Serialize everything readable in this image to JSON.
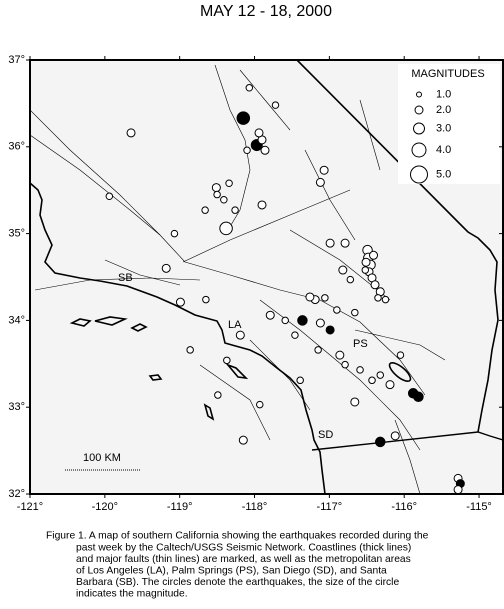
{
  "title": "MAY 12 - 18, 2000",
  "map": {
    "xlim": [
      -121,
      -114.68
    ],
    "ylim": [
      32,
      37
    ],
    "xticks": [
      {
        "value": -121,
        "label": "-121°"
      },
      {
        "value": -120,
        "label": "-120°"
      },
      {
        "value": -119,
        "label": "-119°"
      },
      {
        "value": -118,
        "label": "-118°"
      },
      {
        "value": -117,
        "label": "-117°"
      },
      {
        "value": -116,
        "label": "-116°"
      },
      {
        "value": -115,
        "label": "-115°"
      }
    ],
    "yticks": [
      {
        "value": 32,
        "label": "32°"
      },
      {
        "value": 33,
        "label": "33°"
      },
      {
        "value": 34,
        "label": "34°"
      },
      {
        "value": 35,
        "label": "35°"
      },
      {
        "value": 36,
        "label": "36°"
      },
      {
        "value": 37,
        "label": "37°"
      }
    ]
  },
  "legend": {
    "title": "MAGNITUDES",
    "entries": [
      {
        "value": 1,
        "label": "1.0"
      },
      {
        "value": 2,
        "label": "2.0"
      },
      {
        "value": 3,
        "label": "3.0"
      },
      {
        "value": 4,
        "label": "4.0"
      },
      {
        "value": 5,
        "label": "5.0"
      }
    ]
  },
  "places": [
    "SB",
    "LA",
    "PS",
    "SD"
  ],
  "scale_bar": "100 KM",
  "events": [
    {
      "lon": -118.15,
      "lat": 36.33,
      "mag": 3.5,
      "filled": true
    },
    {
      "lon": -117.97,
      "lat": 36.02,
      "mag": 3.0,
      "filled": true
    },
    {
      "lon": -117.9,
      "lat": 36.08,
      "mag": 2.0
    },
    {
      "lon": -117.94,
      "lat": 36.16,
      "mag": 2.0
    },
    {
      "lon": -117.72,
      "lat": 36.48,
      "mag": 1.5
    },
    {
      "lon": -118.07,
      "lat": 36.68,
      "mag": 1.5
    },
    {
      "lon": -119.65,
      "lat": 36.16,
      "mag": 2.0
    },
    {
      "lon": -117.86,
      "lat": 35.96,
      "mag": 2.0
    },
    {
      "lon": -118.1,
      "lat": 35.96,
      "mag": 1.5
    },
    {
      "lon": -118.51,
      "lat": 35.53,
      "mag": 2.0
    },
    {
      "lon": -118.5,
      "lat": 35.45,
      "mag": 1.5
    },
    {
      "lon": -118.34,
      "lat": 35.58,
      "mag": 1.5
    },
    {
      "lon": -118.41,
      "lat": 35.39,
      "mag": 1.5
    },
    {
      "lon": -117.9,
      "lat": 35.33,
      "mag": 2.0
    },
    {
      "lon": -118.26,
      "lat": 35.27,
      "mag": 1.5
    },
    {
      "lon": -118.66,
      "lat": 35.27,
      "mag": 1.5
    },
    {
      "lon": -118.38,
      "lat": 35.06,
      "mag": 3.5
    },
    {
      "lon": -119.07,
      "lat": 35.0,
      "mag": 1.5
    },
    {
      "lon": -117.07,
      "lat": 35.73,
      "mag": 2.0
    },
    {
      "lon": -117.12,
      "lat": 35.59,
      "mag": 2.0
    },
    {
      "lon": -119.94,
      "lat": 35.43,
      "mag": 1.5
    },
    {
      "lon": -116.99,
      "lat": 34.89,
      "mag": 2.0
    },
    {
      "lon": -116.79,
      "lat": 34.89,
      "mag": 2.0
    },
    {
      "lon": -116.49,
      "lat": 34.81,
      "mag": 2.5
    },
    {
      "lon": -116.48,
      "lat": 34.72,
      "mag": 2.5
    },
    {
      "lon": -116.45,
      "lat": 34.64,
      "mag": 2.5
    },
    {
      "lon": -116.47,
      "lat": 34.56,
      "mag": 2.0
    },
    {
      "lon": -116.43,
      "lat": 34.49,
      "mag": 2.0
    },
    {
      "lon": -116.39,
      "lat": 34.41,
      "mag": 2.0
    },
    {
      "lon": -116.32,
      "lat": 34.33,
      "mag": 2.0
    },
    {
      "lon": -116.51,
      "lat": 34.67,
      "mag": 2.0
    },
    {
      "lon": -116.41,
      "lat": 34.75,
      "mag": 2.0
    },
    {
      "lon": -116.52,
      "lat": 34.58,
      "mag": 1.5
    },
    {
      "lon": -116.35,
      "lat": 34.26,
      "mag": 1.5
    },
    {
      "lon": -116.25,
      "lat": 34.24,
      "mag": 1.5
    },
    {
      "lon": -116.82,
      "lat": 34.58,
      "mag": 2.0
    },
    {
      "lon": -116.72,
      "lat": 34.47,
      "mag": 1.5
    },
    {
      "lon": -117.19,
      "lat": 34.24,
      "mag": 2.0
    },
    {
      "lon": -117.26,
      "lat": 34.27,
      "mag": 2.0
    },
    {
      "lon": -117.06,
      "lat": 34.26,
      "mag": 1.5
    },
    {
      "lon": -117.36,
      "lat": 34.0,
      "mag": 2.5,
      "filled": true
    },
    {
      "lon": -117.12,
      "lat": 33.97,
      "mag": 2.0
    },
    {
      "lon": -116.99,
      "lat": 33.89,
      "mag": 2.0,
      "filled": true
    },
    {
      "lon": -116.9,
      "lat": 34.12,
      "mag": 1.5
    },
    {
      "lon": -116.66,
      "lat": 34.09,
      "mag": 1.5
    },
    {
      "lon": -117.59,
      "lat": 34.0,
      "mag": 1.5
    },
    {
      "lon": -117.79,
      "lat": 34.06,
      "mag": 2.0
    },
    {
      "lon": -117.46,
      "lat": 33.83,
      "mag": 1.5
    },
    {
      "lon": -117.15,
      "lat": 33.66,
      "mag": 1.5
    },
    {
      "lon": -116.86,
      "lat": 33.6,
      "mag": 2.0
    },
    {
      "lon": -116.79,
      "lat": 33.49,
      "mag": 1.5
    },
    {
      "lon": -116.59,
      "lat": 33.43,
      "mag": 1.5
    },
    {
      "lon": -116.43,
      "lat": 33.31,
      "mag": 1.5
    },
    {
      "lon": -116.19,
      "lat": 33.26,
      "mag": 2.0
    },
    {
      "lon": -115.88,
      "lat": 33.16,
      "mag": 2.5,
      "filled": true
    },
    {
      "lon": -115.81,
      "lat": 33.12,
      "mag": 2.5,
      "filled": true
    },
    {
      "lon": -116.66,
      "lat": 33.06,
      "mag": 2.0
    },
    {
      "lon": -116.32,
      "lat": 33.37,
      "mag": 1.5
    },
    {
      "lon": -117.93,
      "lat": 33.03,
      "mag": 1.5
    },
    {
      "lon": -118.15,
      "lat": 32.62,
      "mag": 2.0
    },
    {
      "lon": -118.49,
      "lat": 33.14,
      "mag": 1.5
    },
    {
      "lon": -118.86,
      "lat": 33.66,
      "mag": 1.5
    },
    {
      "lon": -118.99,
      "lat": 34.21,
      "mag": 2.0
    },
    {
      "lon": -118.65,
      "lat": 34.24,
      "mag": 1.5
    },
    {
      "lon": -119.18,
      "lat": 34.6,
      "mag": 2.0
    },
    {
      "lon": -118.19,
      "lat": 33.83,
      "mag": 2.0
    },
    {
      "lon": -118.37,
      "lat": 33.54,
      "mag": 1.5
    },
    {
      "lon": -116.32,
      "lat": 32.6,
      "mag": 2.5,
      "filled": true
    },
    {
      "lon": -116.12,
      "lat": 32.67,
      "mag": 2.0
    },
    {
      "lon": -115.28,
      "lat": 32.18,
      "mag": 2.0
    },
    {
      "lon": -115.25,
      "lat": 32.12,
      "mag": 2.0,
      "filled": true
    },
    {
      "lon": -115.28,
      "lat": 32.05,
      "mag": 2.0
    },
    {
      "lon": -117.39,
      "lat": 33.31,
      "mag": 1.5
    },
    {
      "lon": -116.05,
      "lat": 33.6,
      "mag": 1.5
    }
  ],
  "caption": [
    "Figure 1. A map of southern California showing the earthquakes recorded during the",
    "past week by the Caltech/USGS Seismic Network.  Coastlines (thick lines)",
    "and major faults (thin lines) are marked, as well as the metropolitan areas",
    "of Los Angeles (LA), Palm Springs (PS), San Diego (SD), and Santa",
    "Barbara (SB).  The circles denote the earthquakes, the size of the circle",
    "indicates the magnitude."
  ]
}
